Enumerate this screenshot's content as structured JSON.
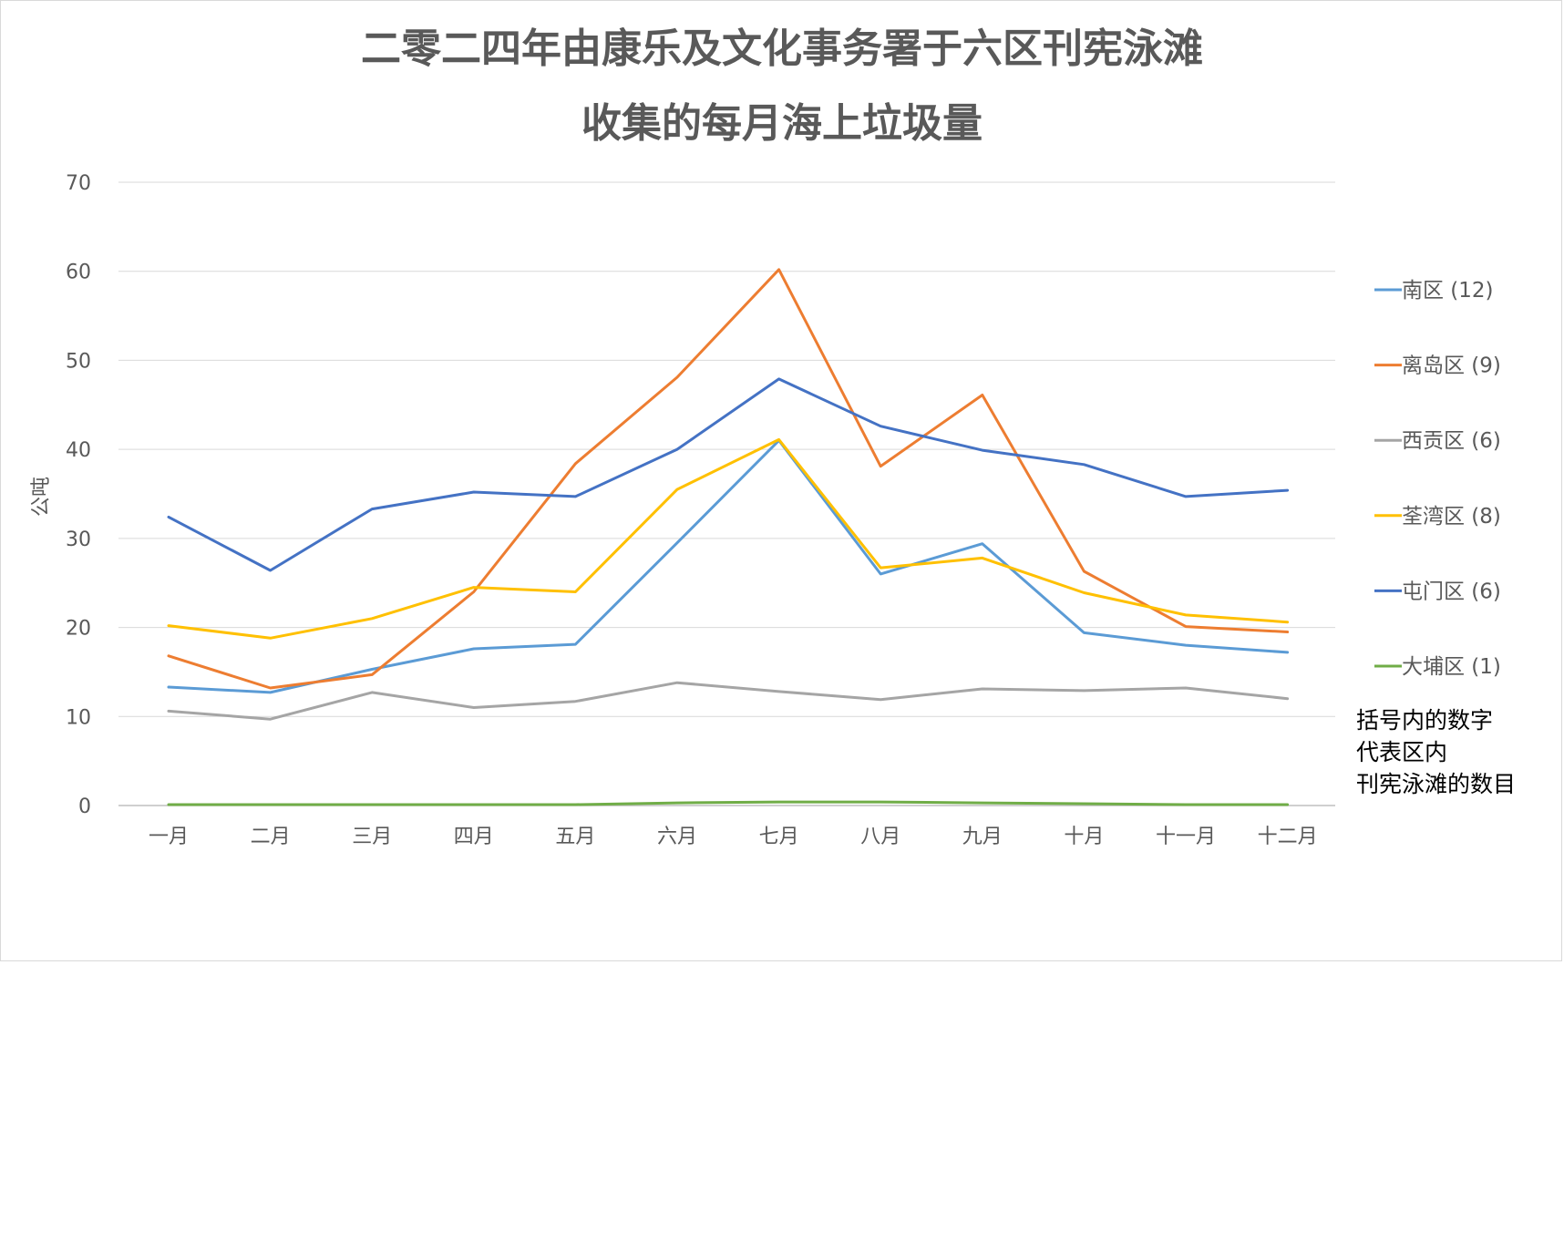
{
  "chart_data": {
    "type": "line",
    "title_lines": [
      "二零二四年由康乐及文化事务署于六区刊宪泳滩",
      "收集的每月海上垃圾量"
    ],
    "xlabel": "",
    "ylabel": "公吨",
    "ylim": [
      0,
      70
    ],
    "yticks": [
      "0",
      "10",
      "20",
      "30",
      "40",
      "50",
      "60",
      "70"
    ],
    "grid": true,
    "legend_position": "right",
    "categories": [
      "一月",
      "二月",
      "三月",
      "四月",
      "五月",
      "六月",
      "七月",
      "八月",
      "九月",
      "十月",
      "十一月",
      "十二月"
    ],
    "series": [
      {
        "name": "南区 (12)",
        "color": "#5b9bd5",
        "values": [
          13.3,
          12.7,
          15.3,
          17.6,
          18.1,
          29.5,
          41.0,
          26.0,
          29.4,
          19.4,
          18.0,
          17.2
        ]
      },
      {
        "name": "离岛区 (9)",
        "color": "#ed7d31",
        "values": [
          16.8,
          13.2,
          14.7,
          24.0,
          38.4,
          48.1,
          60.2,
          38.1,
          46.1,
          26.3,
          20.1,
          19.5
        ]
      },
      {
        "name": "西贡区 (6)",
        "color": "#a5a5a5",
        "values": [
          10.6,
          9.7,
          12.7,
          11.0,
          11.7,
          13.8,
          12.8,
          11.9,
          13.1,
          12.9,
          13.2,
          12.0
        ]
      },
      {
        "name": "荃湾区 (8)",
        "color": "#ffc000",
        "values": [
          20.2,
          18.8,
          21.0,
          24.5,
          24.0,
          35.5,
          41.1,
          26.7,
          27.8,
          23.9,
          21.4,
          20.6
        ]
      },
      {
        "name": "屯门区 (6)",
        "color": "#4472c4",
        "values": [
          32.4,
          26.4,
          33.3,
          35.2,
          34.7,
          40.0,
          47.9,
          42.6,
          39.9,
          38.3,
          34.7,
          35.4
        ]
      },
      {
        "name": "大埔区 (1)",
        "color": "#70ad47",
        "values": [
          0.1,
          0.1,
          0.1,
          0.1,
          0.1,
          0.3,
          0.4,
          0.4,
          0.3,
          0.2,
          0.1,
          0.1
        ]
      }
    ],
    "annotation_lines": [
      "括号内的数字",
      "代表区内",
      "刊宪泳滩的数目"
    ]
  }
}
